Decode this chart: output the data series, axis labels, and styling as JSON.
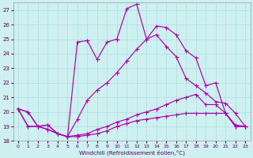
{
  "xlabel": "Windchill (Refroidissement éolien,°C)",
  "background_color": "#cff0f0",
  "grid_color": "#aadddd",
  "line_color": "#aa00aa",
  "xlim": [
    -0.5,
    23.5
  ],
  "ylim": [
    18,
    27.5
  ],
  "yticks": [
    18,
    19,
    20,
    21,
    22,
    23,
    24,
    25,
    26,
    27
  ],
  "xticks": [
    0,
    1,
    2,
    3,
    4,
    5,
    6,
    7,
    8,
    9,
    10,
    11,
    12,
    13,
    14,
    15,
    16,
    17,
    18,
    19,
    20,
    21,
    22,
    23
  ],
  "curve1_x": [
    0,
    1,
    2,
    3,
    4,
    5,
    6,
    7,
    8,
    9,
    10,
    11,
    12,
    13,
    14,
    15,
    16,
    17,
    18,
    19,
    20,
    21,
    22,
    23
  ],
  "curve1_y": [
    20.2,
    20.0,
    19.0,
    19.1,
    18.5,
    18.3,
    24.8,
    24.9,
    23.6,
    24.8,
    25.0,
    27.1,
    27.4,
    25.0,
    25.9,
    25.8,
    25.3,
    24.2,
    23.7,
    21.8,
    22.0,
    19.9,
    19.0,
    19.0
  ],
  "curve2_x": [
    0,
    1,
    2,
    3,
    4,
    5,
    6,
    7,
    8,
    9,
    10,
    11,
    12,
    13,
    14,
    15,
    16,
    17,
    18,
    19,
    20,
    21,
    22,
    23
  ],
  "curve2_y": [
    20.2,
    20.0,
    19.0,
    19.1,
    18.5,
    18.3,
    19.5,
    20.8,
    21.5,
    22.0,
    22.7,
    23.5,
    24.3,
    25.0,
    25.3,
    24.5,
    23.8,
    22.3,
    21.8,
    21.3,
    20.7,
    20.6,
    19.9,
    19.0
  ],
  "curve3_x": [
    0,
    1,
    2,
    3,
    4,
    5,
    6,
    7,
    8,
    9,
    10,
    11,
    12,
    13,
    14,
    15,
    16,
    17,
    18,
    19,
    20,
    21,
    22,
    23
  ],
  "curve3_y": [
    20.2,
    19.0,
    19.0,
    18.8,
    18.5,
    18.3,
    18.4,
    18.5,
    18.8,
    19.0,
    19.3,
    19.5,
    19.8,
    20.0,
    20.2,
    20.5,
    20.8,
    21.0,
    21.2,
    20.5,
    20.5,
    19.9,
    19.1,
    19.0
  ],
  "curve4_x": [
    0,
    1,
    2,
    3,
    4,
    5,
    6,
    7,
    8,
    9,
    10,
    11,
    12,
    13,
    14,
    15,
    16,
    17,
    18,
    19,
    20,
    21,
    22,
    23
  ],
  "curve4_y": [
    20.2,
    19.0,
    19.0,
    18.8,
    18.5,
    18.3,
    18.3,
    18.4,
    18.5,
    18.7,
    19.0,
    19.2,
    19.4,
    19.5,
    19.6,
    19.7,
    19.8,
    19.9,
    19.9,
    19.9,
    19.9,
    19.9,
    19.0,
    19.0
  ]
}
